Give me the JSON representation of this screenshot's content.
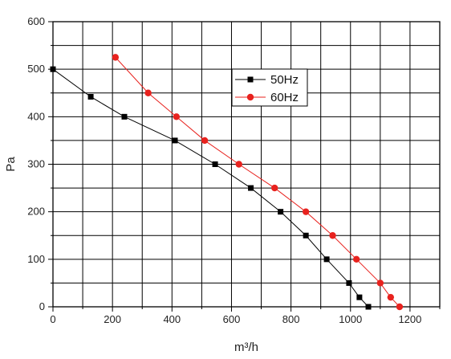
{
  "chart_data": {
    "type": "line",
    "xlabel": "m³/h",
    "ylabel": "Pa",
    "xlim": [
      0,
      1300
    ],
    "ylim": [
      0,
      600
    ],
    "x_ticks": [
      0,
      200,
      400,
      600,
      800,
      1000,
      1200
    ],
    "y_ticks": [
      0,
      100,
      200,
      300,
      400,
      500,
      600
    ],
    "grid": true,
    "legend_position": "top-center",
    "series": [
      {
        "name": "50Hz",
        "color": "#000000",
        "marker": "square",
        "points": [
          [
            0,
            500
          ],
          [
            127,
            442
          ],
          [
            240,
            400
          ],
          [
            410,
            350
          ],
          [
            545,
            300
          ],
          [
            665,
            250
          ],
          [
            765,
            200
          ],
          [
            850,
            150
          ],
          [
            920,
            100
          ],
          [
            995,
            50
          ],
          [
            1030,
            20
          ],
          [
            1060,
            0
          ]
        ]
      },
      {
        "name": "60Hz",
        "color": "#e8221e",
        "marker": "circle",
        "points": [
          [
            210,
            525
          ],
          [
            320,
            450
          ],
          [
            415,
            400
          ],
          [
            510,
            350
          ],
          [
            625,
            300
          ],
          [
            745,
            250
          ],
          [
            850,
            200
          ],
          [
            940,
            150
          ],
          [
            1020,
            100
          ],
          [
            1100,
            50
          ],
          [
            1135,
            20
          ],
          [
            1165,
            0
          ]
        ]
      }
    ]
  }
}
